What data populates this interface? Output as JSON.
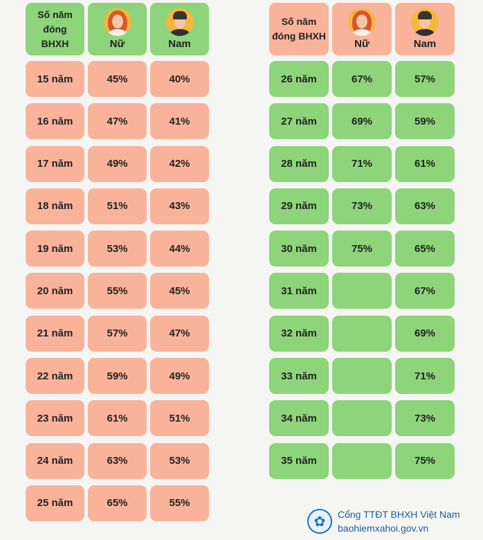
{
  "header": {
    "years_label": "Số năm đóng BHXH",
    "female_label": "Nữ",
    "male_label": "Nam"
  },
  "left_table": [
    {
      "years": "15 năm",
      "female": "45%",
      "male": "40%"
    },
    {
      "years": "16 năm",
      "female": "47%",
      "male": "41%"
    },
    {
      "years": "17 năm",
      "female": "49%",
      "male": "42%"
    },
    {
      "years": "18 năm",
      "female": "51%",
      "male": "43%"
    },
    {
      "years": "19 năm",
      "female": "53%",
      "male": "44%"
    },
    {
      "years": "20 năm",
      "female": "55%",
      "male": "45%"
    },
    {
      "years": "21 năm",
      "female": "57%",
      "male": "47%"
    },
    {
      "years": "22 năm",
      "female": "59%",
      "male": "49%"
    },
    {
      "years": "23 năm",
      "female": "61%",
      "male": "51%"
    },
    {
      "years": "24 năm",
      "female": "63%",
      "male": "53%"
    },
    {
      "years": "25 năm",
      "female": "65%",
      "male": "55%"
    }
  ],
  "right_table": [
    {
      "years": "26 năm",
      "female": "67%",
      "male": "57%"
    },
    {
      "years": "27 năm",
      "female": "69%",
      "male": "59%"
    },
    {
      "years": "28 năm",
      "female": "71%",
      "male": "61%"
    },
    {
      "years": "29 năm",
      "female": "73%",
      "male": "63%"
    },
    {
      "years": "30 năm",
      "female": "75%",
      "male": "65%"
    },
    {
      "years": "31 năm",
      "female": "",
      "male": "67%"
    },
    {
      "years": "32 năm",
      "female": "",
      "male": "69%"
    },
    {
      "years": "33 năm",
      "female": "",
      "male": "71%"
    },
    {
      "years": "34 năm",
      "female": "",
      "male": "73%"
    },
    {
      "years": "35 năm",
      "female": "",
      "male": "75%"
    }
  ],
  "footer": {
    "line1": "Cổng TTĐT BHXH Việt Nam",
    "line2": "baohiemxahoi.gov.vn"
  },
  "colors": {
    "salmon": "#f9b39a",
    "green": "#8ed47a",
    "brand_blue": "#1d5c9c"
  },
  "icons": {
    "female": "woman-avatar-icon",
    "male": "man-avatar-icon",
    "logo": "bhxh-logo-icon"
  }
}
